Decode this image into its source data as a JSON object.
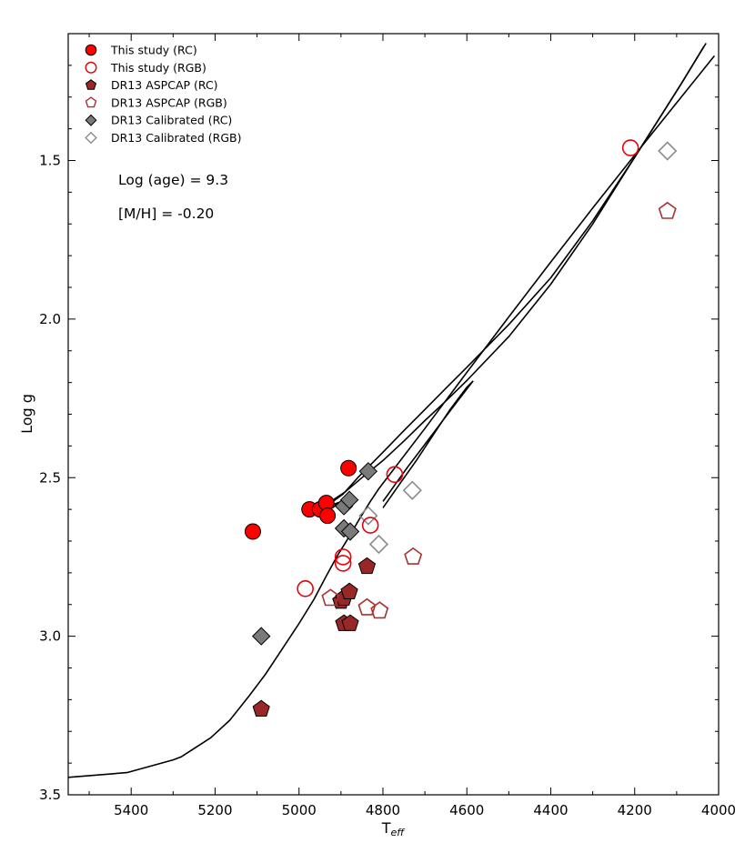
{
  "chart_data": {
    "type": "scatter",
    "xlabel_main": "T",
    "xlabel_sub": "eff",
    "ylabel": "Log g",
    "xlim": [
      5550,
      4000
    ],
    "ylim": [
      3.5,
      1.1
    ],
    "xticks": [
      5400,
      5200,
      5000,
      4800,
      4600,
      4400,
      4200,
      4000
    ],
    "xtick_labels": [
      "5400",
      "5200",
      "5000",
      "4800",
      "4600",
      "4400",
      "4200",
      "4000"
    ],
    "yticks": [
      1.5,
      2.0,
      2.5,
      3.0,
      3.5
    ],
    "ytick_labels": [
      "1.5",
      "2.0",
      "2.5",
      "3.0",
      "3.5"
    ],
    "annotations": [
      "Log (age) = 9.3",
      "[M/H] = -0.20"
    ],
    "series": [
      {
        "name": "This study (RC)",
        "marker": "circle",
        "filled": true,
        "fill": "#ff0000",
        "stroke": "#000000",
        "points": [
          [
            5110,
            2.67
          ],
          [
            4975,
            2.6
          ],
          [
            4950,
            2.6
          ],
          [
            4935,
            2.58
          ],
          [
            4932,
            2.62
          ],
          [
            4882,
            2.47
          ]
        ]
      },
      {
        "name": "This study (RGB)",
        "marker": "circle",
        "filled": false,
        "fill": "none",
        "stroke": "#e8000b",
        "points": [
          [
            4985,
            2.85
          ],
          [
            4895,
            2.75
          ],
          [
            4895,
            2.77
          ],
          [
            4830,
            2.65
          ],
          [
            4772,
            2.49
          ],
          [
            4210,
            1.46
          ]
        ]
      },
      {
        "name": "DR13 ASPCAP (RC)",
        "marker": "pentagon",
        "filled": true,
        "fill": "#982727",
        "stroke": "#000000",
        "points": [
          [
            5090,
            3.23
          ],
          [
            4900,
            2.89
          ],
          [
            4893,
            2.88
          ],
          [
            4880,
            2.86
          ],
          [
            4893,
            2.96
          ],
          [
            4878,
            2.96
          ],
          [
            4838,
            2.78
          ]
        ]
      },
      {
        "name": "DR13 ASPCAP (RGB)",
        "marker": "pentagon",
        "filled": false,
        "fill": "none",
        "stroke": "#a83232",
        "points": [
          [
            4925,
            2.88
          ],
          [
            4838,
            2.91
          ],
          [
            4808,
            2.92
          ],
          [
            4728,
            2.75
          ],
          [
            4122,
            1.66
          ]
        ]
      },
      {
        "name": "DR13 Calibrated (RC)",
        "marker": "diamond",
        "filled": true,
        "fill": "#7a7a7a",
        "stroke": "#000000",
        "points": [
          [
            5090,
            3.0
          ],
          [
            4893,
            2.59
          ],
          [
            4880,
            2.57
          ],
          [
            4893,
            2.66
          ],
          [
            4878,
            2.67
          ],
          [
            4835,
            2.48
          ]
        ]
      },
      {
        "name": "DR13 Calibrated (RGB)",
        "marker": "diamond",
        "filled": false,
        "fill": "none",
        "stroke": "#8c8c8c",
        "points": [
          [
            4835,
            2.62
          ],
          [
            4810,
            2.71
          ],
          [
            4730,
            2.54
          ],
          [
            4122,
            1.47
          ]
        ]
      }
    ],
    "isochrone": [
      [
        [
          5550,
          3.445
        ],
        [
          5410,
          3.43
        ],
        [
          5300,
          3.39
        ],
        [
          5280,
          3.38
        ],
        [
          5210,
          3.32
        ],
        [
          5165,
          3.265
        ],
        [
          5120,
          3.19
        ],
        [
          5080,
          3.12
        ],
        [
          5040,
          3.04
        ],
        [
          5000,
          2.96
        ],
        [
          4965,
          2.885
        ],
        [
          4935,
          2.81
        ],
        [
          4908,
          2.745
        ],
        [
          4880,
          2.685
        ],
        [
          4855,
          2.628
        ],
        [
          4830,
          2.575
        ],
        [
          4810,
          2.535
        ],
        [
          4700,
          2.345
        ],
        [
          4600,
          2.168
        ],
        [
          4500,
          1.993
        ],
        [
          4400,
          1.82
        ],
        [
          4300,
          1.65
        ],
        [
          4200,
          1.483
        ],
        [
          4100,
          1.318
        ],
        [
          4010,
          1.17
        ]
      ],
      [
        [
          4800,
          2.595
        ],
        [
          4760,
          2.52
        ],
        [
          4720,
          2.445
        ],
        [
          4680,
          2.365
        ],
        [
          4640,
          2.285
        ],
        [
          4600,
          2.215
        ],
        [
          4585,
          2.195
        ]
      ],
      [
        [
          4585,
          2.195
        ],
        [
          4620,
          2.255
        ],
        [
          4660,
          2.325
        ],
        [
          4700,
          2.395
        ],
        [
          4740,
          2.465
        ],
        [
          4770,
          2.52
        ],
        [
          4790,
          2.557
        ],
        [
          4800,
          2.575
        ]
      ],
      [
        [
          4940,
          2.595
        ],
        [
          4905,
          2.578
        ],
        [
          4920,
          2.595
        ],
        [
          4950,
          2.588
        ],
        [
          4930,
          2.58
        ],
        [
          4890,
          2.545
        ],
        [
          4850,
          2.5
        ],
        [
          4800,
          2.446
        ],
        [
          4750,
          2.385
        ],
        [
          4700,
          2.32
        ],
        [
          4650,
          2.258
        ],
        [
          4600,
          2.194
        ],
        [
          4500,
          2.055
        ],
        [
          4400,
          1.89
        ],
        [
          4300,
          1.7
        ],
        [
          4200,
          1.49
        ],
        [
          4090,
          1.26
        ],
        [
          4035,
          1.14
        ]
      ],
      [
        [
          4940,
          2.595
        ],
        [
          4895,
          2.552
        ],
        [
          4860,
          2.5
        ],
        [
          4800,
          2.42
        ],
        [
          4750,
          2.352
        ],
        [
          4700,
          2.285
        ],
        [
          4650,
          2.218
        ],
        [
          4600,
          2.152
        ],
        [
          4500,
          2.017
        ],
        [
          4400,
          1.87
        ],
        [
          4300,
          1.69
        ],
        [
          4200,
          1.49
        ],
        [
          4090,
          1.26
        ],
        [
          4030,
          1.13
        ]
      ]
    ]
  }
}
